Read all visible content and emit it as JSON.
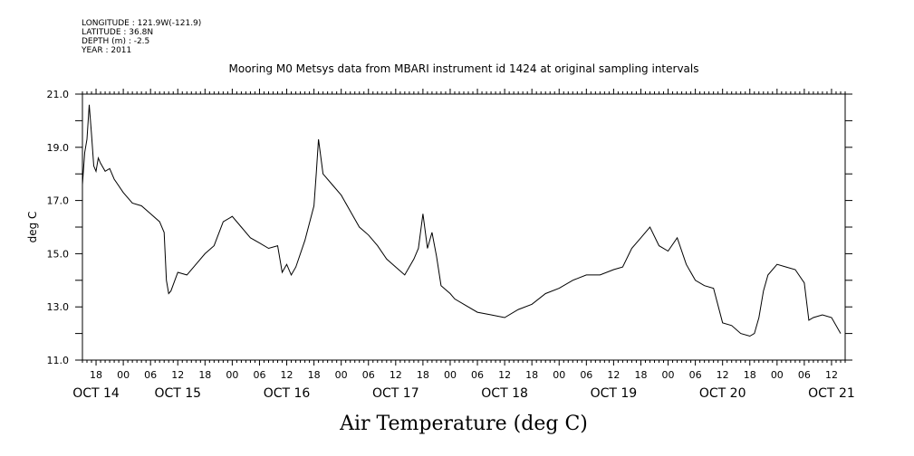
{
  "header": {
    "meta_lines": [
      "LONGITUDE : 121.9W(-121.9)",
      "LATITUDE : 36.8N",
      "DEPTH (m) : -2.5",
      "YEAR : 2011"
    ]
  },
  "chart_data": {
    "type": "line",
    "title": "Mooring M0 Metsys data from MBARI instrument id 1424 at original sampling intervals",
    "xlabel": "Air Temperature (deg C)",
    "ylabel": "deg C",
    "ylim": [
      11.0,
      21.0
    ],
    "y_ticks": [
      "11.0",
      "13.0",
      "15.0",
      "17.0",
      "19.0",
      "21.0"
    ],
    "x_start": "2011-10-14T15:00",
    "x_end": "2011-10-21T15:00",
    "x_hour_labels": [
      {
        "t": "2011-10-14T18:00",
        "label": "18"
      },
      {
        "t": "2011-10-15T00:00",
        "label": "00"
      },
      {
        "t": "2011-10-15T06:00",
        "label": "06"
      },
      {
        "t": "2011-10-15T12:00",
        "label": "12"
      },
      {
        "t": "2011-10-15T18:00",
        "label": "18"
      },
      {
        "t": "2011-10-16T00:00",
        "label": "00"
      },
      {
        "t": "2011-10-16T06:00",
        "label": "06"
      },
      {
        "t": "2011-10-16T12:00",
        "label": "12"
      },
      {
        "t": "2011-10-16T18:00",
        "label": "18"
      },
      {
        "t": "2011-10-17T00:00",
        "label": "00"
      },
      {
        "t": "2011-10-17T06:00",
        "label": "06"
      },
      {
        "t": "2011-10-17T12:00",
        "label": "12"
      },
      {
        "t": "2011-10-17T18:00",
        "label": "18"
      },
      {
        "t": "2011-10-18T00:00",
        "label": "00"
      },
      {
        "t": "2011-10-18T06:00",
        "label": "06"
      },
      {
        "t": "2011-10-18T12:00",
        "label": "12"
      },
      {
        "t": "2011-10-18T18:00",
        "label": "18"
      },
      {
        "t": "2011-10-19T00:00",
        "label": "00"
      },
      {
        "t": "2011-10-19T06:00",
        "label": "06"
      },
      {
        "t": "2011-10-19T12:00",
        "label": "12"
      },
      {
        "t": "2011-10-19T18:00",
        "label": "18"
      },
      {
        "t": "2011-10-20T00:00",
        "label": "00"
      },
      {
        "t": "2011-10-20T06:00",
        "label": "06"
      },
      {
        "t": "2011-10-20T12:00",
        "label": "12"
      },
      {
        "t": "2011-10-20T18:00",
        "label": "18"
      },
      {
        "t": "2011-10-21T00:00",
        "label": "00"
      },
      {
        "t": "2011-10-21T06:00",
        "label": "06"
      },
      {
        "t": "2011-10-21T12:00",
        "label": "12"
      }
    ],
    "x_day_labels": [
      {
        "t": "2011-10-14T18:00",
        "label": "OCT 14"
      },
      {
        "t": "2011-10-15T12:00",
        "label": "OCT 15"
      },
      {
        "t": "2011-10-16T12:00",
        "label": "OCT 16"
      },
      {
        "t": "2011-10-17T12:00",
        "label": "OCT 17"
      },
      {
        "t": "2011-10-18T12:00",
        "label": "OCT 18"
      },
      {
        "t": "2011-10-19T12:00",
        "label": "OCT 19"
      },
      {
        "t": "2011-10-20T12:00",
        "label": "OCT 20"
      },
      {
        "t": "2011-10-21T12:00",
        "label": "OCT 21"
      }
    ],
    "series": [
      {
        "color": "#000000",
        "x": [
          "2011-10-14T15:00",
          "2011-10-14T15:30",
          "2011-10-14T16:00",
          "2011-10-14T16:30",
          "2011-10-14T17:00",
          "2011-10-14T17:30",
          "2011-10-14T18:00",
          "2011-10-14T18:30",
          "2011-10-14T19:00",
          "2011-10-14T20:00",
          "2011-10-14T21:00",
          "2011-10-14T22:00",
          "2011-10-15T00:00",
          "2011-10-15T02:00",
          "2011-10-15T04:00",
          "2011-10-15T06:00",
          "2011-10-15T08:00",
          "2011-10-15T09:00",
          "2011-10-15T09:30",
          "2011-10-15T10:00",
          "2011-10-15T10:30",
          "2011-10-15T12:00",
          "2011-10-15T14:00",
          "2011-10-15T16:00",
          "2011-10-15T18:00",
          "2011-10-15T20:00",
          "2011-10-15T22:00",
          "2011-10-16T00:00",
          "2011-10-16T02:00",
          "2011-10-16T04:00",
          "2011-10-16T06:00",
          "2011-10-16T08:00",
          "2011-10-16T10:00",
          "2011-10-16T11:00",
          "2011-10-16T12:00",
          "2011-10-16T13:00",
          "2011-10-16T14:00",
          "2011-10-16T16:00",
          "2011-10-16T18:00",
          "2011-10-16T18:30",
          "2011-10-16T19:00",
          "2011-10-16T20:00",
          "2011-10-16T22:00",
          "2011-10-17T00:00",
          "2011-10-17T02:00",
          "2011-10-17T04:00",
          "2011-10-17T06:00",
          "2011-10-17T08:00",
          "2011-10-17T10:00",
          "2011-10-17T12:00",
          "2011-10-17T14:00",
          "2011-10-17T16:00",
          "2011-10-17T17:00",
          "2011-10-17T18:00",
          "2011-10-17T19:00",
          "2011-10-17T20:00",
          "2011-10-17T21:00",
          "2011-10-17T22:00",
          "2011-10-18T00:00",
          "2011-10-18T01:00",
          "2011-10-18T03:00",
          "2011-10-18T06:00",
          "2011-10-18T09:00",
          "2011-10-18T12:00",
          "2011-10-18T15:00",
          "2011-10-18T18:00",
          "2011-10-18T21:00",
          "2011-10-19T00:00",
          "2011-10-19T03:00",
          "2011-10-19T06:00",
          "2011-10-19T09:00",
          "2011-10-19T12:00",
          "2011-10-19T14:00",
          "2011-10-19T16:00",
          "2011-10-19T18:00",
          "2011-10-19T20:00",
          "2011-10-19T22:00",
          "2011-10-20T00:00",
          "2011-10-20T02:00",
          "2011-10-20T04:00",
          "2011-10-20T06:00",
          "2011-10-20T08:00",
          "2011-10-20T10:00",
          "2011-10-20T12:00",
          "2011-10-20T14:00",
          "2011-10-20T16:00",
          "2011-10-20T18:00",
          "2011-10-20T19:00",
          "2011-10-20T20:00",
          "2011-10-20T21:00",
          "2011-10-20T22:00",
          "2011-10-21T00:00",
          "2011-10-21T02:00",
          "2011-10-21T04:00",
          "2011-10-21T06:00",
          "2011-10-21T07:00",
          "2011-10-21T08:00",
          "2011-10-21T10:00",
          "2011-10-21T12:00",
          "2011-10-21T14:00"
        ],
        "y": [
          17.6,
          18.8,
          19.3,
          20.6,
          19.5,
          18.3,
          18.1,
          18.6,
          18.4,
          18.1,
          18.2,
          17.8,
          17.3,
          16.9,
          16.8,
          16.5,
          16.2,
          15.8,
          14.0,
          13.5,
          13.6,
          14.3,
          14.2,
          14.6,
          15.0,
          15.3,
          16.2,
          16.4,
          16.0,
          15.6,
          15.4,
          15.2,
          15.3,
          14.3,
          14.6,
          14.2,
          14.5,
          15.5,
          16.8,
          18.0,
          19.3,
          18.0,
          17.6,
          17.2,
          16.6,
          16.0,
          15.7,
          15.3,
          14.8,
          14.5,
          14.2,
          14.8,
          15.2,
          16.5,
          15.2,
          15.8,
          14.9,
          13.8,
          13.5,
          13.3,
          13.1,
          12.8,
          12.7,
          12.6,
          12.9,
          13.1,
          13.5,
          13.7,
          14.0,
          14.2,
          14.2,
          14.4,
          14.5,
          15.2,
          15.6,
          16.0,
          15.3,
          15.1,
          15.6,
          14.6,
          14.0,
          13.8,
          13.7,
          12.4,
          12.3,
          12.0,
          11.9,
          12.0,
          12.6,
          13.6,
          14.2,
          14.6,
          14.5,
          14.4,
          13.9,
          12.5,
          12.6,
          12.7,
          12.6,
          12.0
        ]
      }
    ]
  }
}
